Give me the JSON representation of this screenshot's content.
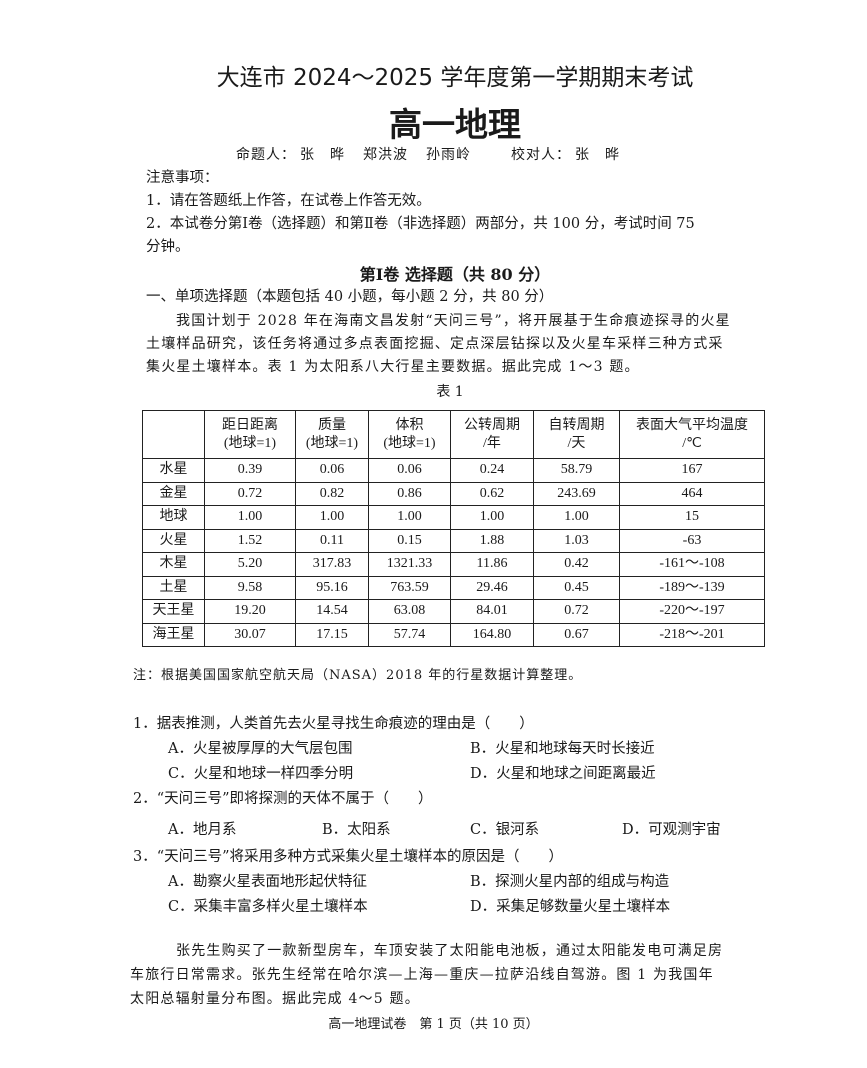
{
  "header": {
    "title": "大连市 2024～2025 学年度第一学期期末考试",
    "subject": "高一地理",
    "authors_label": "命题人：",
    "authors": [
      "张　晔",
      "郑洪波",
      "孙雨岭"
    ],
    "proofreader_label": "校对人：",
    "proofreader": "张　晔"
  },
  "notice": {
    "heading": "注意事项：",
    "items": [
      "1．请在答题纸上作答，在试卷上作答无效。",
      "2．本试卷分第Ⅰ卷（选择题）和第Ⅱ卷（非选择题）两部分，共 100 分，考试时间 75",
      "分钟。"
    ]
  },
  "section": {
    "title": "第Ⅰ卷 选择题（共 80 分）",
    "part": "一、单项选择题（本题包括 40 小题，每小题 2 分，共 80 分）"
  },
  "intro1": [
    "我国计划于 2028 年在海南文昌发射“天问三号”，将开展基于生命痕迹探寻的火星",
    "土壤样品研究，该任务将通过多点表面挖掘、定点深层钻探以及火星车采样三种方式采",
    "集火星土壤样本。表 1 为太阳系八大行星主要数据。据此完成 1～3 题。"
  ],
  "table": {
    "caption": "表 1",
    "headers": [
      [
        "",
        ""
      ],
      [
        "距日距离",
        "(地球=1)"
      ],
      [
        "质量",
        "(地球=1)"
      ],
      [
        "体积",
        "(地球=1)"
      ],
      [
        "公转周期",
        "/年"
      ],
      [
        "自转周期",
        "/天"
      ],
      [
        "表面大气平均温度",
        "/℃"
      ]
    ],
    "rows": [
      [
        "水星",
        "0.39",
        "0.06",
        "0.06",
        "0.24",
        "58.79",
        "167"
      ],
      [
        "金星",
        "0.72",
        "0.82",
        "0.86",
        "0.62",
        "243.69",
        "464"
      ],
      [
        "地球",
        "1.00",
        "1.00",
        "1.00",
        "1.00",
        "1.00",
        "15"
      ],
      [
        "火星",
        "1.52",
        "0.11",
        "0.15",
        "1.88",
        "1.03",
        "-63"
      ],
      [
        "木星",
        "5.20",
        "317.83",
        "1321.33",
        "11.86",
        "0.42",
        "-161～-108"
      ],
      [
        "土星",
        "9.58",
        "95.16",
        "763.59",
        "29.46",
        "0.45",
        "-189～-139"
      ],
      [
        "天王星",
        "19.20",
        "14.54",
        "63.08",
        "84.01",
        "0.72",
        "-220～-197"
      ],
      [
        "海王星",
        "30.07",
        "17.15",
        "57.74",
        "164.80",
        "0.67",
        "-218～-201"
      ]
    ],
    "note": "注：根据美国国家航空航天局（NASA）2018 年的行星数据计算整理。"
  },
  "questions": [
    {
      "stem": "1．据表推测，人类首先去火星寻找生命痕迹的理由是（　　）",
      "options": [
        "A．火星被厚厚的大气层包围",
        "B．火星和地球每天时长接近",
        "C．火星和地球一样四季分明",
        "D．火星和地球之间距离最近"
      ]
    },
    {
      "stem": "2．“天问三号”即将探测的天体不属于（　　）",
      "options": [
        "A．地月系",
        "B．太阳系",
        "C．银河系",
        "D．可观测宇宙"
      ]
    },
    {
      "stem": "3．“天问三号”将采用多种方式采集火星土壤样本的原因是（　　）",
      "options": [
        "A．勘察火星表面地形起伏特征",
        "B．探测火星内部的组成与构造",
        "C．采集丰富多样火星土壤样本",
        "D．采集足够数量火星土壤样本"
      ]
    }
  ],
  "intro2": [
    "张先生购买了一款新型房车，车顶安装了太阳能电池板，通过太阳能发电可满足房",
    "车旅行日常需求。张先生经常在哈尔滨—上海—重庆—拉萨沿线自驾游。图 1 为我国年",
    "太阳总辐射量分布图。据此完成 4～5 题。"
  ],
  "footer": "高一地理试卷　第 1 页（共 10 页）"
}
